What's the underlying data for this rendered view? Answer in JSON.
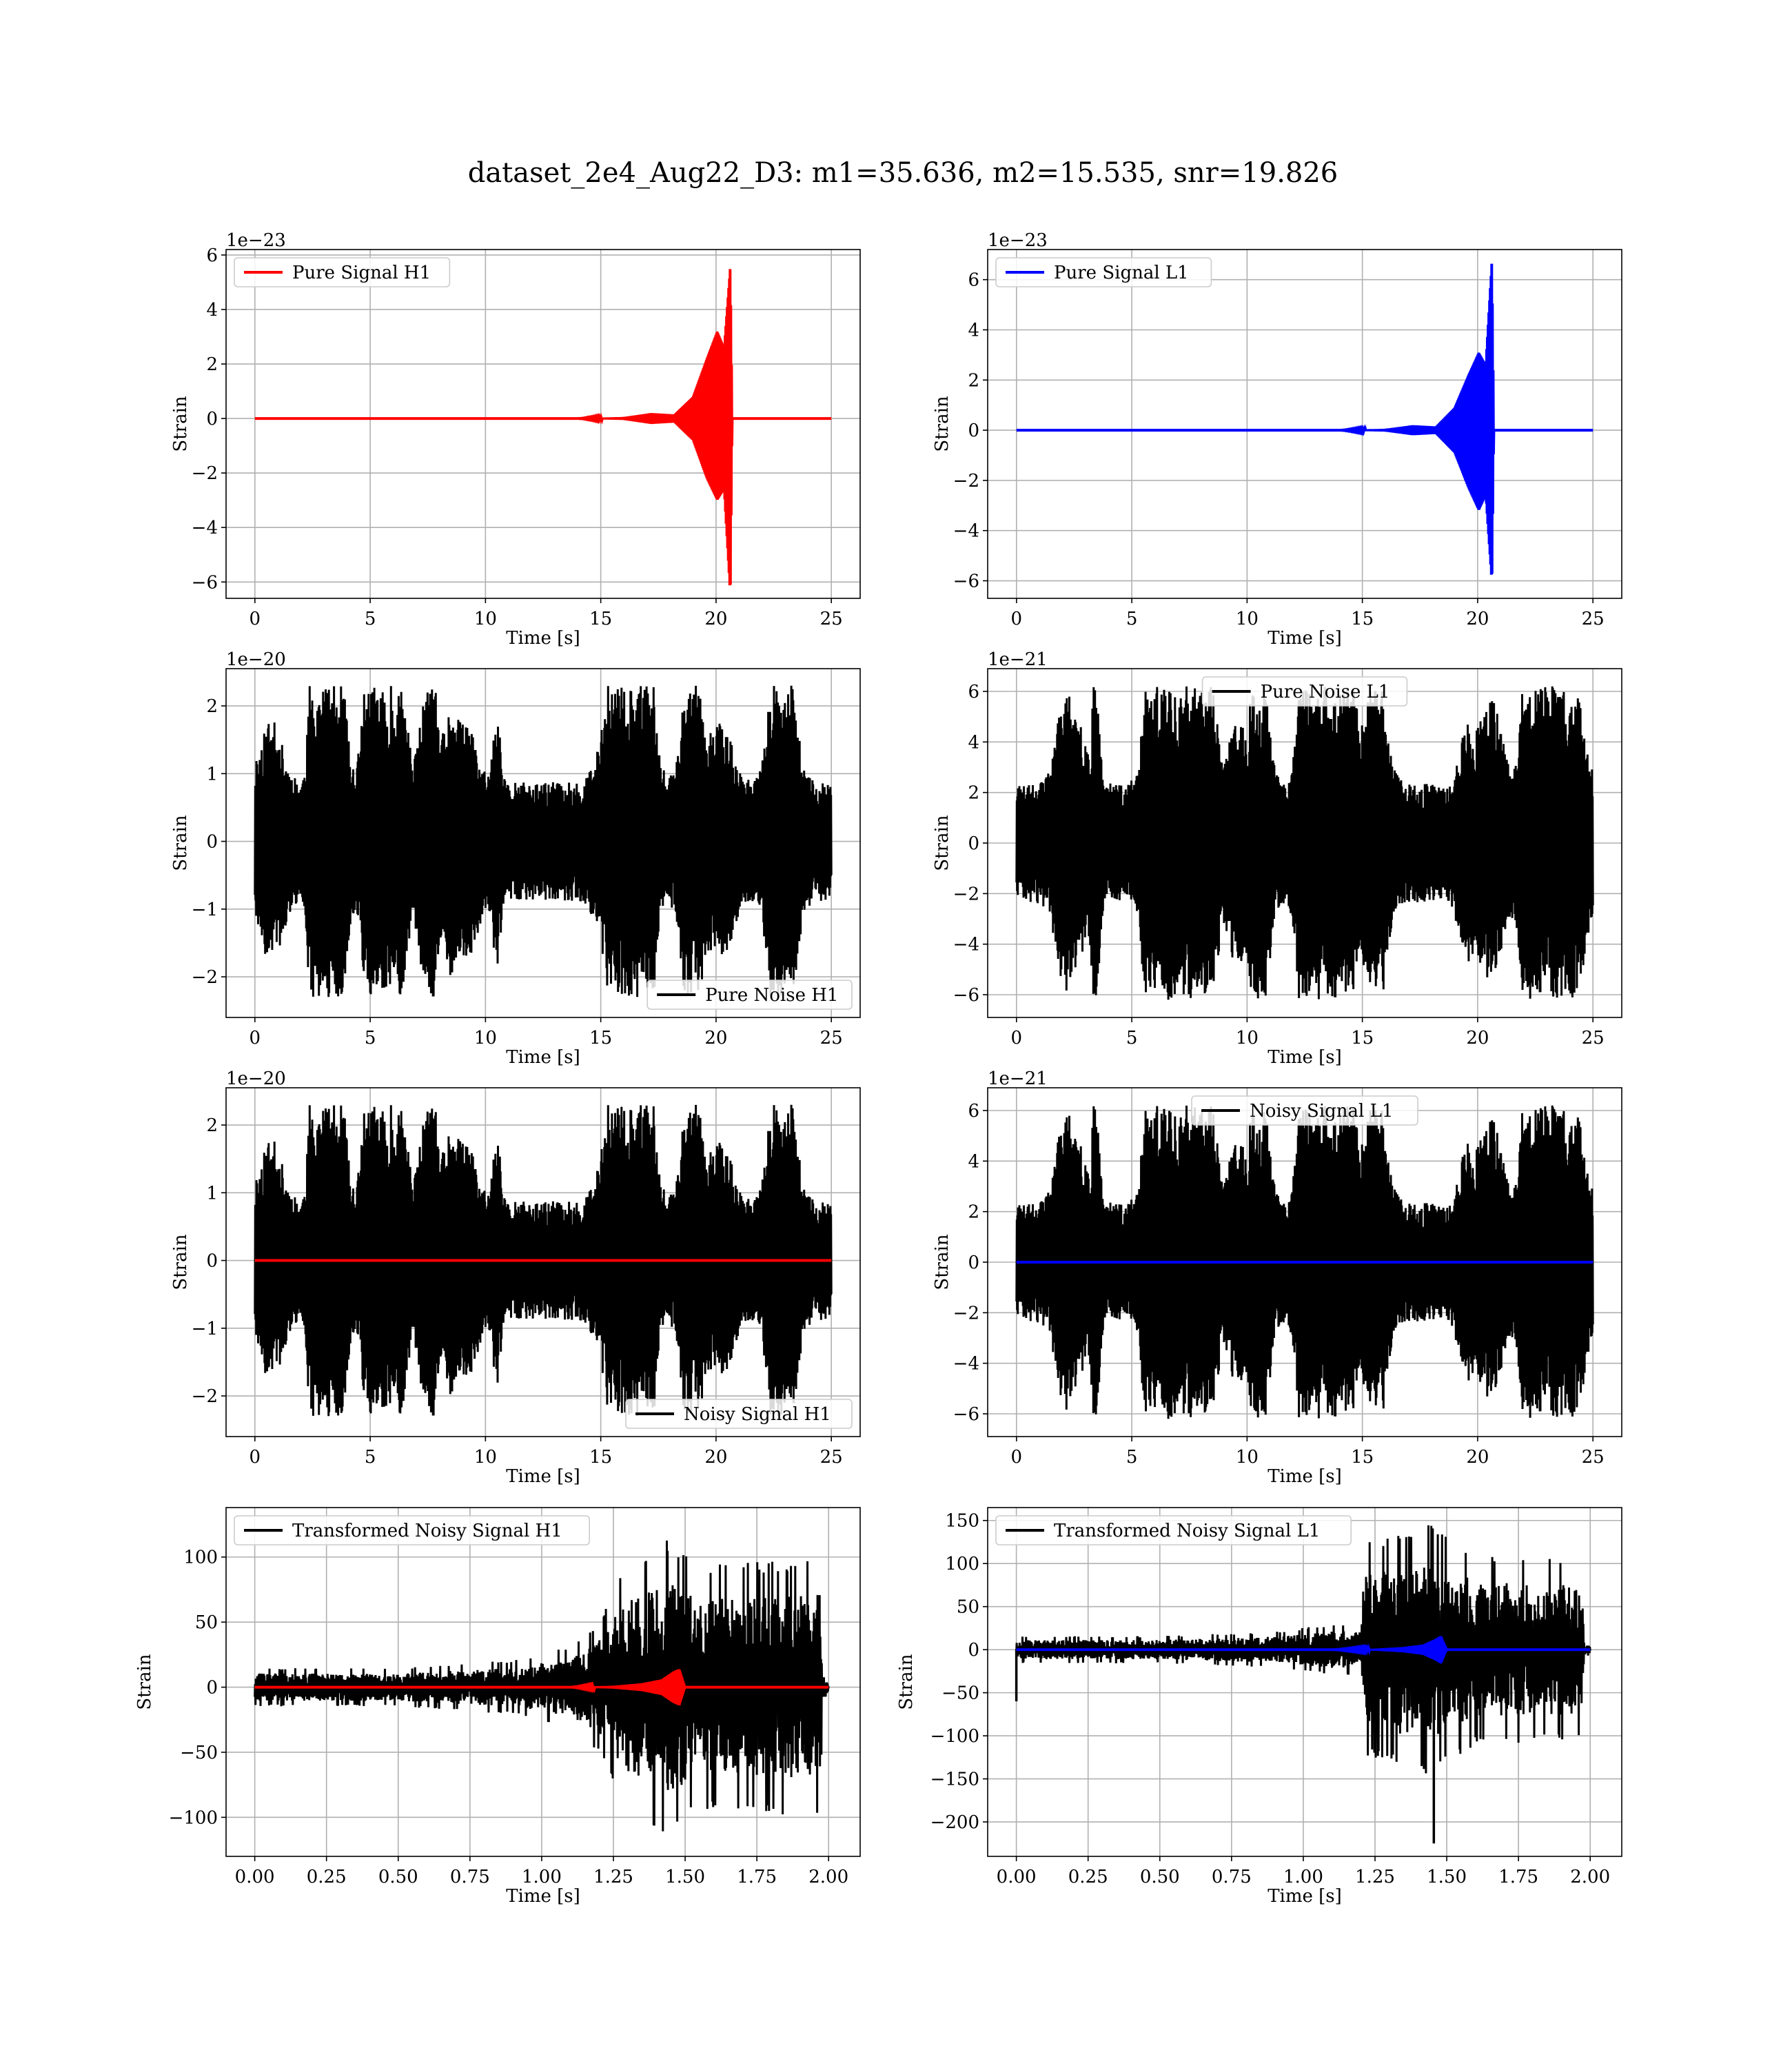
{
  "figure": {
    "suptitle": "dataset_2e4_Aug22_D3: m1=35.636, m2=15.535, snr=19.826"
  },
  "colors": {
    "h1": "#ff0000",
    "l1": "#0000ff",
    "noise": "#000000",
    "grid": "#b0b0b0"
  },
  "chart_data": [
    {
      "type": "line",
      "id": "pure-signal-h1",
      "xlabel": "Time [s]",
      "ylabel": "Strain",
      "offset_text": "1e−23",
      "xlim": [
        -1.25,
        26.25
      ],
      "ylim": [
        -6.6,
        6.2
      ],
      "xticks": [
        0,
        5,
        10,
        15,
        20,
        25
      ],
      "xtick_labels": [
        "0",
        "5",
        "10",
        "15",
        "20",
        "25"
      ],
      "yticks": [
        -6,
        -4,
        -2,
        0,
        2,
        4,
        6
      ],
      "ytick_labels": [
        "−6",
        "−4",
        "−2",
        "0",
        "2",
        "4",
        "6"
      ],
      "legend": {
        "loc": "upper-left"
      },
      "series": [
        {
          "name": "Pure Signal H1",
          "kind": "chirp",
          "color": "#ff0000",
          "envelope": {
            "x": [
              0,
              14,
              16,
              17.2,
              18.2,
              19,
              19.6,
              20.05,
              20.35,
              20.62,
              20.7,
              25
            ],
            "upper": [
              0,
              0,
              0.05,
              0.2,
              0.15,
              0.8,
              2.2,
              3.2,
              2.6,
              5.6,
              0,
              0
            ],
            "lower": [
              0,
              0,
              -0.05,
              -0.2,
              -0.15,
              -0.8,
              -2.2,
              -3.0,
              -2.6,
              -6.5,
              0,
              0
            ]
          }
        }
      ]
    },
    {
      "type": "line",
      "id": "pure-signal-l1",
      "xlabel": "Time [s]",
      "ylabel": "Strain",
      "offset_text": "1e−23",
      "xlim": [
        -1.25,
        26.25
      ],
      "ylim": [
        -6.7,
        7.2
      ],
      "xticks": [
        0,
        5,
        10,
        15,
        20,
        25
      ],
      "xtick_labels": [
        "0",
        "5",
        "10",
        "15",
        "20",
        "25"
      ],
      "yticks": [
        -6,
        -4,
        -2,
        0,
        2,
        4,
        6
      ],
      "ytick_labels": [
        "−6",
        "−4",
        "−2",
        "0",
        "2",
        "4",
        "6"
      ],
      "legend": {
        "loc": "upper-left"
      },
      "series": [
        {
          "name": "Pure Signal L1",
          "kind": "chirp",
          "color": "#0000ff",
          "envelope": {
            "x": [
              0,
              14,
              16,
              17.2,
              18.2,
              19,
              19.6,
              20.05,
              20.35,
              20.62,
              20.7,
              25
            ],
            "upper": [
              0,
              0,
              0.05,
              0.2,
              0.15,
              0.9,
              2.2,
              3.1,
              2.6,
              6.8,
              0,
              0
            ],
            "lower": [
              0,
              0,
              -0.05,
              -0.2,
              -0.15,
              -0.9,
              -2.3,
              -3.2,
              -2.6,
              -6.1,
              0,
              0
            ]
          }
        }
      ]
    },
    {
      "type": "line",
      "id": "pure-noise-h1",
      "xlabel": "Time [s]",
      "ylabel": "Strain",
      "offset_text": "1e−20",
      "xlim": [
        -1.25,
        26.25
      ],
      "ylim": [
        -2.6,
        2.55
      ],
      "xticks": [
        0,
        5,
        10,
        15,
        20,
        25
      ],
      "xtick_labels": [
        "0",
        "5",
        "10",
        "15",
        "20",
        "25"
      ],
      "yticks": [
        -2,
        -1,
        0,
        1,
        2
      ],
      "ytick_labels": [
        "−2",
        "−1",
        "0",
        "1",
        "2"
      ],
      "legend": {
        "loc": "lower-right"
      },
      "series": [
        {
          "name": "Pure Noise H1",
          "kind": "noise",
          "color": "#000000",
          "amplitude": 2.3,
          "seed": 11
        }
      ]
    },
    {
      "type": "line",
      "id": "pure-noise-l1",
      "xlabel": "Time [s]",
      "ylabel": "Strain",
      "offset_text": "1e−21",
      "xlim": [
        -1.25,
        26.25
      ],
      "ylim": [
        -6.9,
        6.9
      ],
      "xticks": [
        0,
        5,
        10,
        15,
        20,
        25
      ],
      "xtick_labels": [
        "0",
        "5",
        "10",
        "15",
        "20",
        "25"
      ],
      "yticks": [
        -6,
        -4,
        -2,
        0,
        2,
        4,
        6
      ],
      "ytick_labels": [
        "−6",
        "−4",
        "−2",
        "0",
        "2",
        "4",
        "6"
      ],
      "legend": {
        "loc": "upper-center"
      },
      "series": [
        {
          "name": "Pure Noise L1",
          "kind": "noise",
          "color": "#000000",
          "amplitude": 6.2,
          "seed": 23
        }
      ]
    },
    {
      "type": "line",
      "id": "noisy-signal-h1",
      "xlabel": "Time [s]",
      "ylabel": "Strain",
      "offset_text": "1e−20",
      "xlim": [
        -1.25,
        26.25
      ],
      "ylim": [
        -2.6,
        2.55
      ],
      "xticks": [
        0,
        5,
        10,
        15,
        20,
        25
      ],
      "xtick_labels": [
        "0",
        "5",
        "10",
        "15",
        "20",
        "25"
      ],
      "yticks": [
        -2,
        -1,
        0,
        1,
        2
      ],
      "ytick_labels": [
        "−2",
        "−1",
        "0",
        "1",
        "2"
      ],
      "legend": {
        "loc": "lower-right"
      },
      "series": [
        {
          "name": "Noisy Signal H1",
          "kind": "noise",
          "color": "#000000",
          "amplitude": 2.3,
          "seed": 11
        },
        {
          "kind": "flat",
          "color": "#ff0000",
          "value": 0
        }
      ]
    },
    {
      "type": "line",
      "id": "noisy-signal-l1",
      "xlabel": "Time [s]",
      "ylabel": "Strain",
      "offset_text": "1e−21",
      "xlim": [
        -1.25,
        26.25
      ],
      "ylim": [
        -6.9,
        6.9
      ],
      "xticks": [
        0,
        5,
        10,
        15,
        20,
        25
      ],
      "xtick_labels": [
        "0",
        "5",
        "10",
        "15",
        "20",
        "25"
      ],
      "yticks": [
        -6,
        -4,
        -2,
        0,
        2,
        4,
        6
      ],
      "ytick_labels": [
        "−6",
        "−4",
        "−2",
        "0",
        "2",
        "4",
        "6"
      ],
      "legend": {
        "loc": "upper-center"
      },
      "series": [
        {
          "name": "Noisy Signal L1",
          "kind": "noise",
          "color": "#000000",
          "amplitude": 6.2,
          "seed": 23
        },
        {
          "kind": "flat",
          "color": "#0000ff",
          "value": 0
        }
      ]
    },
    {
      "type": "line",
      "id": "transformed-noisy-signal-h1",
      "xlabel": "Time [s]",
      "ylabel": "Strain",
      "offset_text": "",
      "xlim": [
        -0.1,
        2.11
      ],
      "ylim": [
        -130,
        138
      ],
      "xticks": [
        0,
        0.25,
        0.5,
        0.75,
        1.0,
        1.25,
        1.5,
        1.75,
        2.0
      ],
      "xtick_labels": [
        "0.00",
        "0.25",
        "0.50",
        "0.75",
        "1.00",
        "1.25",
        "1.50",
        "1.75",
        "2.00"
      ],
      "yticks": [
        -100,
        -50,
        0,
        50,
        100
      ],
      "ytick_labels": [
        "−100",
        "−50",
        "0",
        "50",
        "100"
      ],
      "legend": {
        "loc": "upper-left"
      },
      "series": [
        {
          "name": "Transformed Noisy Signal H1",
          "kind": "whitened",
          "color": "#000000",
          "seed": 37,
          "envelope": {
            "x": [
              0,
              0.5,
              0.9,
              1.1,
              1.2,
              1.28,
              1.45,
              1.55,
              1.97,
              1.98,
              2.0
            ],
            "amp": [
              14,
              14,
              20,
              30,
              48,
              85,
              110,
              90,
              95,
              8,
              6
            ]
          }
        },
        {
          "kind": "chirp",
          "color": "#ff0000",
          "envelope": {
            "x": [
              0,
              1.1,
              1.25,
              1.35,
              1.42,
              1.46,
              1.48,
              1.5,
              2.0
            ],
            "upper": [
              0,
              0,
              1,
              3,
              6,
              12,
              14,
              0,
              0
            ],
            "lower": [
              0,
              0,
              -1,
              -3,
              -6,
              -12,
              -14,
              0,
              0
            ]
          }
        }
      ]
    },
    {
      "type": "line",
      "id": "transformed-noisy-signal-l1",
      "xlabel": "Time [s]",
      "ylabel": "Strain",
      "offset_text": "",
      "xlim": [
        -0.1,
        2.11
      ],
      "ylim": [
        -240,
        165
      ],
      "xticks": [
        0,
        0.25,
        0.5,
        0.75,
        1.0,
        1.25,
        1.5,
        1.75,
        2.0
      ],
      "xtick_labels": [
        "0.00",
        "0.25",
        "0.50",
        "0.75",
        "1.00",
        "1.25",
        "1.50",
        "1.75",
        "2.00"
      ],
      "yticks": [
        -200,
        -150,
        -100,
        -50,
        0,
        50,
        100,
        150
      ],
      "ytick_labels": [
        "−200",
        "−150",
        "−100",
        "−50",
        "0",
        "50",
        "100",
        "150"
      ],
      "legend": {
        "loc": "upper-left"
      },
      "series": [
        {
          "name": "Transformed Noisy Signal L1",
          "kind": "whitened",
          "color": "#000000",
          "seed": 53,
          "envelope": {
            "x": [
              0,
              0.5,
              0.9,
              1.1,
              1.2,
              1.22,
              1.45,
              1.6,
              1.97,
              1.98,
              2.0
            ],
            "amp": [
              15,
              15,
              20,
              28,
              30,
              120,
              140,
              105,
              100,
              8,
              6
            ]
          },
          "spikes": [
            {
              "x": 0.0,
              "y": -60
            },
            {
              "x": 1.455,
              "y": -225
            }
          ]
        },
        {
          "kind": "chirp",
          "color": "#0000ff",
          "envelope": {
            "x": [
              0,
              1.1,
              1.25,
              1.35,
              1.42,
              1.46,
              1.48,
              1.5,
              2.0
            ],
            "upper": [
              0,
              0,
              1,
              3,
              6,
              12,
              16,
              0,
              0
            ],
            "lower": [
              0,
              0,
              -1,
              -3,
              -6,
              -12,
              -16,
              0,
              0
            ]
          }
        }
      ]
    }
  ]
}
